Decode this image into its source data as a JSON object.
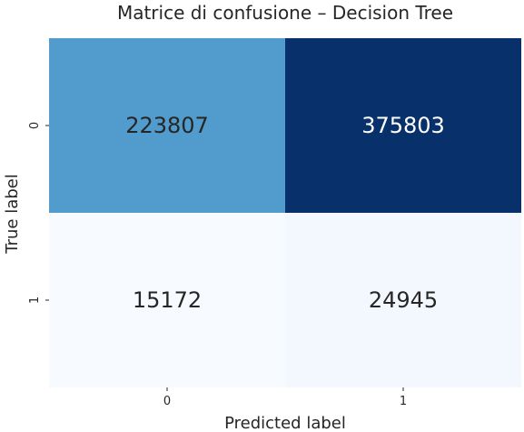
{
  "chart_data": {
    "type": "heatmap",
    "title": "Matrice di confusione – Decision Tree",
    "xlabel": "Predicted label",
    "ylabel": "True label",
    "x_categories": [
      "0",
      "1"
    ],
    "y_categories": [
      "0",
      "1"
    ],
    "values": [
      [
        223807,
        375803
      ],
      [
        15172,
        24945
      ]
    ],
    "cell_labels": [
      [
        "223807",
        "375803"
      ],
      [
        "15172",
        "24945"
      ]
    ],
    "colormap": "Blues",
    "colors": {
      "low": "#f7fbff",
      "mid": "#6baed6",
      "high": "#08306b",
      "text_on_dark": "#ffffff",
      "text_on_light": "#262626"
    },
    "colorbar": false,
    "grid": false
  }
}
